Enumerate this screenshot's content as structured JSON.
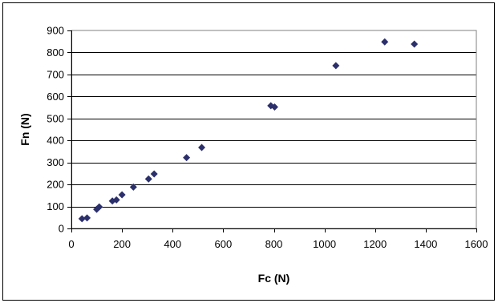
{
  "chart_data": {
    "type": "scatter",
    "xlabel": "Fc (N)",
    "ylabel": "Fn (N)",
    "xlim": [
      0,
      1600
    ],
    "ylim": [
      0,
      900
    ],
    "xticks": [
      0,
      200,
      400,
      600,
      800,
      1000,
      1200,
      1400,
      1600
    ],
    "yticks": [
      0,
      100,
      200,
      300,
      400,
      500,
      600,
      700,
      800,
      900
    ],
    "grid": "horizontal",
    "legend": "none",
    "marker": "diamond",
    "marker_color": "#2b2f6b",
    "series": [
      {
        "points": [
          [
            42,
            44
          ],
          [
            62,
            48
          ],
          [
            100,
            87
          ],
          [
            110,
            98
          ],
          [
            162,
            125
          ],
          [
            178,
            130
          ],
          [
            200,
            153
          ],
          [
            245,
            188
          ],
          [
            305,
            225
          ],
          [
            327,
            248
          ],
          [
            455,
            322
          ],
          [
            515,
            368
          ],
          [
            788,
            558
          ],
          [
            803,
            552
          ],
          [
            1045,
            740
          ],
          [
            1238,
            848
          ],
          [
            1355,
            838
          ]
        ]
      }
    ]
  }
}
